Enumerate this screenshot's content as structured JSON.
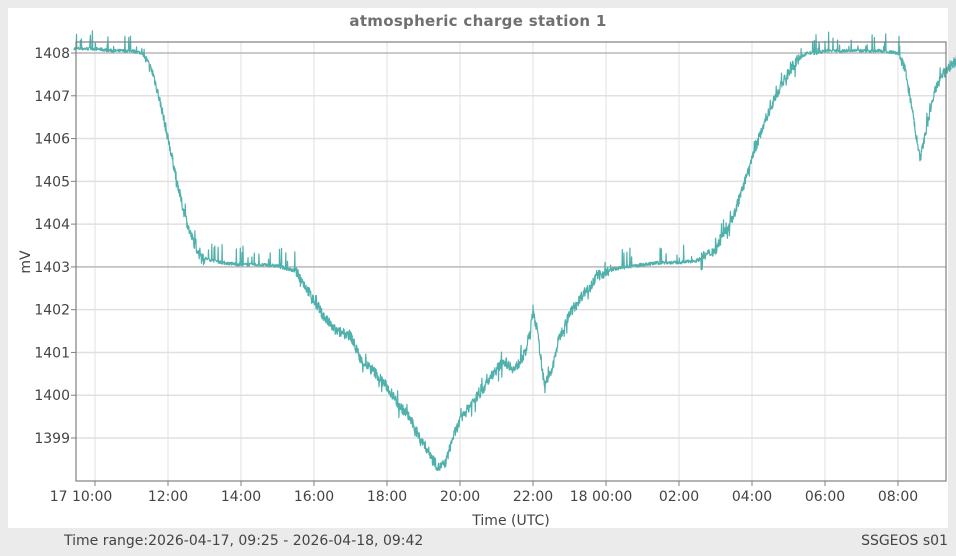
{
  "title": "atmospheric charge station 1",
  "footer": {
    "time_range_label": "Time range:",
    "time_range_value": "2026-04-17, 09:25 - 2026-04-18, 09:42",
    "station": "SSGEOS s01"
  },
  "colors": {
    "series": "#4fb0ac",
    "grid": "#e0e0e0",
    "grid_major": "#b8b8b8",
    "frame": "#808080",
    "background": "#ebebeb"
  },
  "chart_data": {
    "type": "line",
    "title": "atmospheric charge station 1",
    "xlabel": "Time (UTC)",
    "ylabel": "mV",
    "ylim": [
      1398.15,
      1408.25
    ],
    "yticks": [
      1399,
      1400,
      1401,
      1402,
      1403,
      1404,
      1405,
      1406,
      1407,
      1408
    ],
    "xticks": [
      "17 10:00",
      "12:00",
      "14:00",
      "16:00",
      "18:00",
      "20:00",
      "22:00",
      "18 00:00",
      "02:00",
      "04:00",
      "06:00",
      "08:00"
    ],
    "xrange_hours": [
      9.42,
      33.7
    ],
    "grid": true,
    "highlight_lines": [
      1408,
      1403
    ],
    "series": [
      {
        "name": "atmospheric charge",
        "x_hours": [
          9.42,
          10.0,
          10.5,
          11.0,
          11.3,
          11.6,
          11.8,
          12.0,
          12.2,
          12.4,
          12.6,
          12.8,
          13.0,
          13.5,
          14.0,
          14.5,
          15.0,
          15.5,
          15.8,
          16.0,
          16.3,
          16.6,
          17.0,
          17.3,
          17.6,
          18.0,
          18.3,
          18.6,
          18.9,
          19.2,
          19.4,
          19.6,
          19.8,
          20.0,
          20.3,
          20.6,
          20.9,
          21.2,
          21.5,
          21.8,
          22.0,
          22.1,
          22.3,
          22.5,
          22.7,
          23.0,
          23.4,
          23.8,
          24.2,
          24.6,
          25.0,
          25.5,
          26.0,
          26.5,
          27.0,
          27.5,
          28.0,
          28.3,
          28.6,
          28.9,
          29.2,
          29.5,
          29.8,
          30.0,
          30.3,
          30.6,
          31.0,
          31.5,
          32.0,
          32.2,
          32.4,
          32.6,
          32.8,
          33.0,
          33.3,
          33.7
        ],
        "values": [
          1408.1,
          1408.1,
          1408.05,
          1408.05,
          1408.0,
          1407.5,
          1406.8,
          1406.0,
          1405.2,
          1404.4,
          1403.8,
          1403.4,
          1403.2,
          1403.1,
          1403.05,
          1403.05,
          1403.02,
          1402.9,
          1402.5,
          1402.2,
          1401.8,
          1401.5,
          1401.4,
          1400.8,
          1400.6,
          1400.2,
          1399.8,
          1399.5,
          1399.0,
          1398.6,
          1398.3,
          1398.4,
          1399.0,
          1399.4,
          1399.8,
          1400.1,
          1400.5,
          1400.8,
          1400.6,
          1401.0,
          1401.9,
          1401.6,
          1400.3,
          1400.5,
          1401.3,
          1401.9,
          1402.4,
          1402.8,
          1402.95,
          1403.0,
          1403.05,
          1403.1,
          1403.1,
          1403.15,
          1403.4,
          1404.2,
          1405.5,
          1406.3,
          1406.9,
          1407.4,
          1407.8,
          1408.0,
          1408.0,
          1408.05,
          1408.05,
          1408.05,
          1408.05,
          1408.05,
          1408.0,
          1407.6,
          1406.6,
          1405.5,
          1406.3,
          1407.1,
          1407.6,
          1407.9
        ]
      }
    ]
  }
}
